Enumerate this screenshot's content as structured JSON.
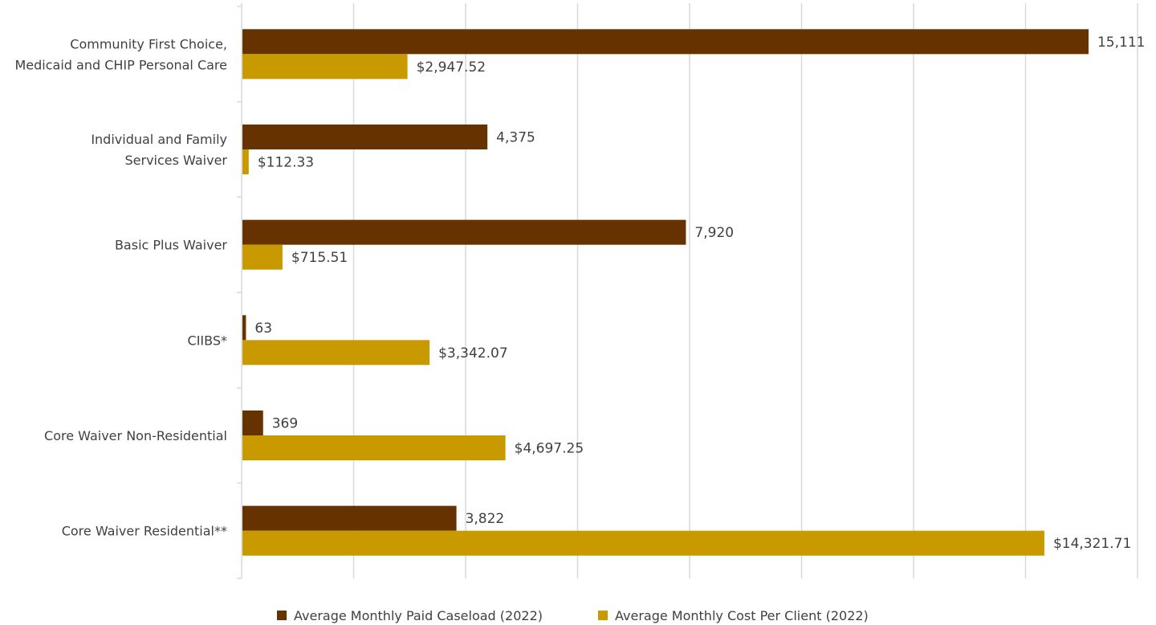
{
  "chart_data": {
    "type": "bar",
    "orientation": "horizontal",
    "title": "",
    "categories": [
      [
        "Community First Choice,",
        "Medicaid and CHIP Personal Care"
      ],
      [
        "Individual and Family",
        "Services Waiver"
      ],
      [
        "Basic Plus Waiver"
      ],
      [
        "CIIBS*"
      ],
      [
        "Core Waiver Non-Residential"
      ],
      [
        "Core Waiver Residential**"
      ]
    ],
    "series": [
      {
        "name": "Average Monthly Paid Caseload (2022)",
        "color": "#663300",
        "values": [
          15111,
          4375,
          7920,
          63,
          369,
          3822
        ],
        "labels": [
          "15,111",
          "4,375",
          "7,920",
          "63",
          "369",
          "3,822"
        ],
        "axis_max": 16000
      },
      {
        "name": "Average Monthly Cost Per Client (2022)",
        "color": "#C99A00",
        "values": [
          2947.52,
          112.33,
          715.51,
          3342.07,
          4697.25,
          14321.71
        ],
        "labels": [
          "$2,947.52",
          "$112.33",
          "$715.51",
          "$3,342.07",
          "$4,697.25",
          "$14,321.71"
        ],
        "axis_max": 16000
      }
    ],
    "grid": true,
    "gridline_count": 8,
    "legend_position": "bottom"
  }
}
